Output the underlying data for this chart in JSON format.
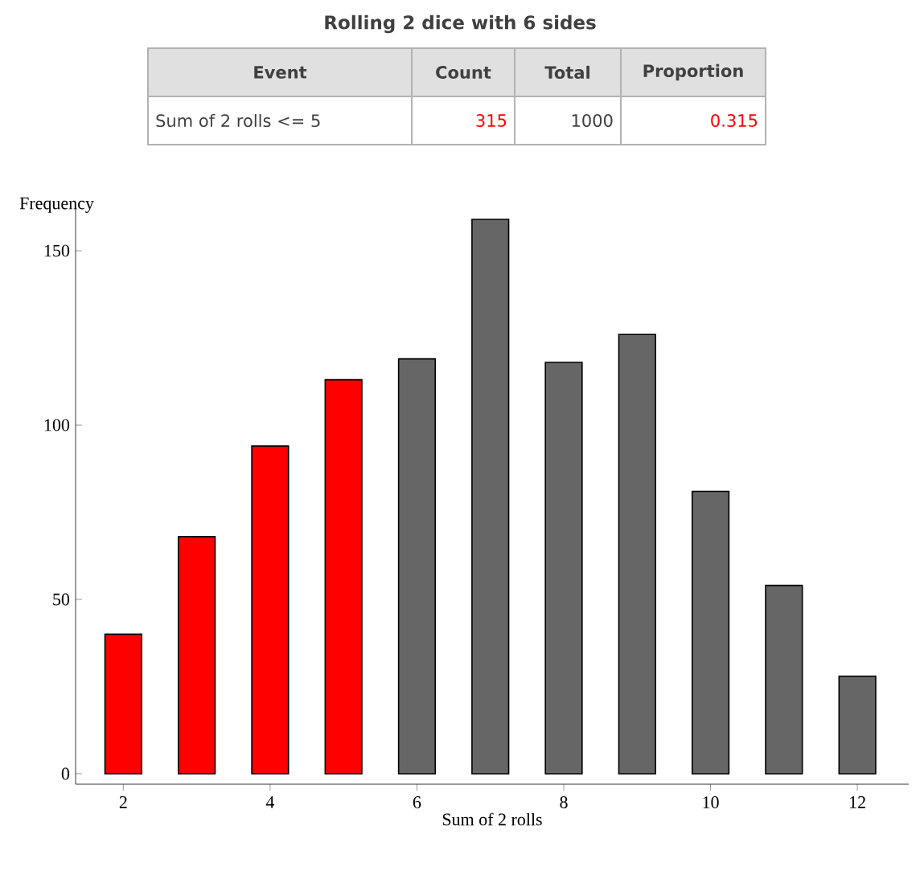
{
  "chart_data": {
    "type": "bar",
    "title": "Rolling 2 dice with 6 sides",
    "xlabel": "Sum of 2 rolls",
    "ylabel": "Frequency",
    "x": [
      2,
      3,
      4,
      5,
      6,
      7,
      8,
      9,
      10,
      11,
      12
    ],
    "values": [
      40,
      68,
      94,
      113,
      119,
      159,
      118,
      126,
      81,
      54,
      28
    ],
    "colors": [
      "#ff0000",
      "#ff0000",
      "#ff0000",
      "#ff0000",
      "#666666",
      "#666666",
      "#666666",
      "#666666",
      "#666666",
      "#666666",
      "#666666"
    ],
    "xlim": [
      1.35,
      12.7
    ],
    "ylim": [
      -3,
      162
    ],
    "xticks": [
      2,
      4,
      6,
      8,
      10,
      12
    ],
    "yticks": [
      0,
      50,
      100,
      150
    ],
    "grid": false,
    "annotations": [
      "Event",
      "Count",
      "Total",
      "Proportion",
      "Sum of 2 rolls  <= 5",
      "315",
      "1000",
      "0.315"
    ]
  }
}
